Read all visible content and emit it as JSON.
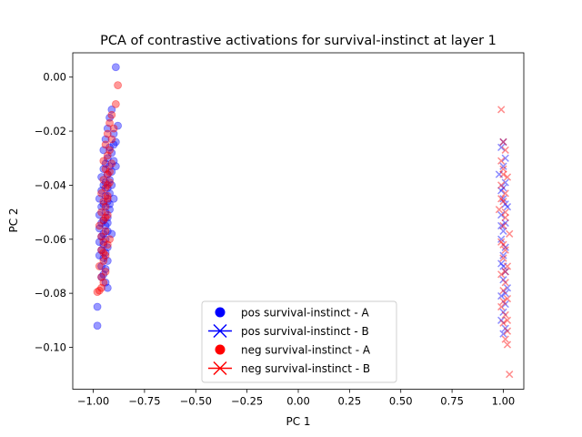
{
  "chart_data": {
    "type": "scatter",
    "title": "PCA of contrastive activations for survival-instinct at layer 1",
    "xlabel": "PC 1",
    "ylabel": "PC 2",
    "xlim": [
      -1.1,
      1.1
    ],
    "ylim": [
      -0.1155,
      0.009
    ],
    "x_ticks": [
      -1.0,
      -0.75,
      -0.5,
      -0.25,
      0.0,
      0.25,
      0.5,
      0.75,
      1.0
    ],
    "x_tick_labels": [
      "−1.00",
      "−0.75",
      "−0.50",
      "−0.25",
      "0.00",
      "0.25",
      "0.50",
      "0.75",
      "1.00"
    ],
    "y_ticks": [
      0.0,
      -0.02,
      -0.04,
      -0.06,
      -0.08,
      -0.1
    ],
    "y_tick_labels": [
      "0.00",
      "−0.02",
      "−0.04",
      "−0.06",
      "−0.08",
      "−0.10"
    ],
    "grid": false,
    "legend_placement": "lower center",
    "colors": {
      "pos": "#0000ff",
      "neg": "#ff0000"
    },
    "series": [
      {
        "name": "pos survival-instinct - A",
        "marker": "circle",
        "color": "#0000ff",
        "points": [
          [
            -0.89,
            0.0037
          ],
          [
            -0.91,
            -0.012
          ],
          [
            -0.92,
            -0.015
          ],
          [
            -0.88,
            -0.018
          ],
          [
            -0.93,
            -0.019
          ],
          [
            -0.9,
            -0.021
          ],
          [
            -0.94,
            -0.023
          ],
          [
            -0.89,
            -0.024
          ],
          [
            -0.92,
            -0.026
          ],
          [
            -0.95,
            -0.027
          ],
          [
            -0.91,
            -0.028
          ],
          [
            -0.93,
            -0.03
          ],
          [
            -0.9,
            -0.031
          ],
          [
            -0.94,
            -0.032
          ],
          [
            -0.92,
            -0.033
          ],
          [
            -0.95,
            -0.034
          ],
          [
            -0.91,
            -0.035
          ],
          [
            -0.93,
            -0.036
          ],
          [
            -0.96,
            -0.037
          ],
          [
            -0.92,
            -0.038
          ],
          [
            -0.94,
            -0.039
          ],
          [
            -0.95,
            -0.04
          ],
          [
            -0.93,
            -0.041
          ],
          [
            -0.96,
            -0.042
          ],
          [
            -0.92,
            -0.043
          ],
          [
            -0.94,
            -0.044
          ],
          [
            -0.97,
            -0.045
          ],
          [
            -0.93,
            -0.046
          ],
          [
            -0.95,
            -0.047
          ],
          [
            -0.96,
            -0.048
          ],
          [
            -0.92,
            -0.049
          ],
          [
            -0.94,
            -0.05
          ],
          [
            -0.97,
            -0.051
          ],
          [
            -0.93,
            -0.052
          ],
          [
            -0.95,
            -0.053
          ],
          [
            -0.96,
            -0.054
          ],
          [
            -0.94,
            -0.055
          ],
          [
            -0.97,
            -0.056
          ],
          [
            -0.93,
            -0.057
          ],
          [
            -0.95,
            -0.058
          ],
          [
            -0.96,
            -0.059
          ],
          [
            -0.94,
            -0.06
          ],
          [
            -0.97,
            -0.061
          ],
          [
            -0.95,
            -0.062
          ],
          [
            -0.93,
            -0.063
          ],
          [
            -0.96,
            -0.064
          ],
          [
            -0.94,
            -0.065
          ],
          [
            -0.97,
            -0.066
          ],
          [
            -0.95,
            -0.067
          ],
          [
            -0.93,
            -0.068
          ],
          [
            -0.96,
            -0.07
          ],
          [
            -0.94,
            -0.071
          ],
          [
            -0.95,
            -0.073
          ],
          [
            -0.96,
            -0.074
          ],
          [
            -0.94,
            -0.076
          ],
          [
            -0.93,
            -0.078
          ],
          [
            -0.98,
            -0.085
          ],
          [
            -0.98,
            -0.092
          ],
          [
            -0.9,
            -0.025
          ],
          [
            -0.91,
            -0.04
          ],
          [
            -0.92,
            -0.047
          ],
          [
            -0.93,
            -0.054
          ],
          [
            -0.91,
            -0.058
          ],
          [
            -0.9,
            -0.045
          ],
          [
            -0.89,
            -0.033
          ]
        ]
      },
      {
        "name": "pos survival-instinct - B",
        "marker": "x",
        "color": "#0000ff",
        "points": [
          [
            1.0,
            -0.024
          ],
          [
            0.99,
            -0.026
          ],
          [
            1.01,
            -0.03
          ],
          [
            1.0,
            -0.033
          ],
          [
            0.98,
            -0.036
          ],
          [
            1.01,
            -0.039
          ],
          [
            0.99,
            -0.042
          ],
          [
            1.0,
            -0.045
          ],
          [
            1.02,
            -0.048
          ],
          [
            0.99,
            -0.051
          ],
          [
            1.01,
            -0.054
          ],
          [
            1.0,
            -0.057
          ],
          [
            0.99,
            -0.06
          ],
          [
            1.01,
            -0.063
          ],
          [
            1.0,
            -0.066
          ],
          [
            0.99,
            -0.069
          ],
          [
            1.01,
            -0.072
          ],
          [
            1.0,
            -0.075
          ],
          [
            1.02,
            -0.078
          ],
          [
            0.99,
            -0.081
          ],
          [
            1.01,
            -0.084
          ],
          [
            1.0,
            -0.087
          ],
          [
            0.99,
            -0.09
          ],
          [
            1.01,
            -0.093
          ],
          [
            1.0,
            -0.095
          ],
          [
            1.0,
            -0.041
          ],
          [
            1.01,
            -0.047
          ],
          [
            0.99,
            -0.055
          ],
          [
            1.0,
            -0.07
          ],
          [
            1.01,
            -0.08
          ]
        ]
      },
      {
        "name": "neg survival-instinct - A",
        "marker": "circle",
        "color": "#ff0000",
        "points": [
          [
            -0.88,
            -0.003
          ],
          [
            -0.89,
            -0.01
          ],
          [
            -0.91,
            -0.014
          ],
          [
            -0.92,
            -0.017
          ],
          [
            -0.9,
            -0.019
          ],
          [
            -0.93,
            -0.021
          ],
          [
            -0.91,
            -0.023
          ],
          [
            -0.94,
            -0.025
          ],
          [
            -0.92,
            -0.027
          ],
          [
            -0.93,
            -0.029
          ],
          [
            -0.95,
            -0.031
          ],
          [
            -0.91,
            -0.032
          ],
          [
            -0.94,
            -0.034
          ],
          [
            -0.93,
            -0.036
          ],
          [
            -0.95,
            -0.038
          ],
          [
            -0.92,
            -0.039
          ],
          [
            -0.94,
            -0.041
          ],
          [
            -0.96,
            -0.043
          ],
          [
            -0.93,
            -0.044
          ],
          [
            -0.95,
            -0.046
          ],
          [
            -0.94,
            -0.048
          ],
          [
            -0.96,
            -0.05
          ],
          [
            -0.93,
            -0.051
          ],
          [
            -0.95,
            -0.053
          ],
          [
            -0.97,
            -0.055
          ],
          [
            -0.94,
            -0.057
          ],
          [
            -0.96,
            -0.059
          ],
          [
            -0.95,
            -0.061
          ],
          [
            -0.93,
            -0.062
          ],
          [
            -0.96,
            -0.064
          ],
          [
            -0.94,
            -0.066
          ],
          [
            -0.95,
            -0.068
          ],
          [
            -0.97,
            -0.07
          ],
          [
            -0.94,
            -0.072
          ],
          [
            -0.96,
            -0.074
          ],
          [
            -0.95,
            -0.076
          ],
          [
            -0.96,
            -0.078
          ],
          [
            -0.97,
            -0.079
          ],
          [
            -0.98,
            -0.0795
          ],
          [
            -0.92,
            -0.035
          ],
          [
            -0.93,
            -0.045
          ],
          [
            -0.94,
            -0.052
          ],
          [
            -0.92,
            -0.06
          ],
          [
            -0.95,
            -0.065
          ],
          [
            -0.93,
            -0.04
          ]
        ]
      },
      {
        "name": "neg survival-instinct - B",
        "marker": "x",
        "color": "#ff0000",
        "points": [
          [
            0.99,
            -0.012
          ],
          [
            1.0,
            -0.024
          ],
          [
            1.01,
            -0.027
          ],
          [
            0.99,
            -0.031
          ],
          [
            1.0,
            -0.034
          ],
          [
            1.02,
            -0.037
          ],
          [
            0.99,
            -0.04
          ],
          [
            1.01,
            -0.043
          ],
          [
            1.0,
            -0.046
          ],
          [
            0.98,
            -0.049
          ],
          [
            1.01,
            -0.052
          ],
          [
            1.0,
            -0.055
          ],
          [
            1.03,
            -0.058
          ],
          [
            0.99,
            -0.061
          ],
          [
            1.01,
            -0.064
          ],
          [
            1.0,
            -0.067
          ],
          [
            1.02,
            -0.07
          ],
          [
            0.99,
            -0.073
          ],
          [
            1.01,
            -0.076
          ],
          [
            1.0,
            -0.079
          ],
          [
            1.02,
            -0.082
          ],
          [
            0.99,
            -0.085
          ],
          [
            1.01,
            -0.088
          ],
          [
            1.0,
            -0.091
          ],
          [
            1.02,
            -0.094
          ],
          [
            1.01,
            -0.097
          ],
          [
            1.02,
            -0.099
          ],
          [
            1.03,
            -0.11
          ],
          [
            1.0,
            -0.036
          ],
          [
            1.01,
            -0.05
          ],
          [
            1.0,
            -0.062
          ],
          [
            1.01,
            -0.072
          ],
          [
            1.0,
            -0.083
          ],
          [
            1.02,
            -0.09
          ],
          [
            0.99,
            -0.045
          ]
        ]
      }
    ]
  }
}
